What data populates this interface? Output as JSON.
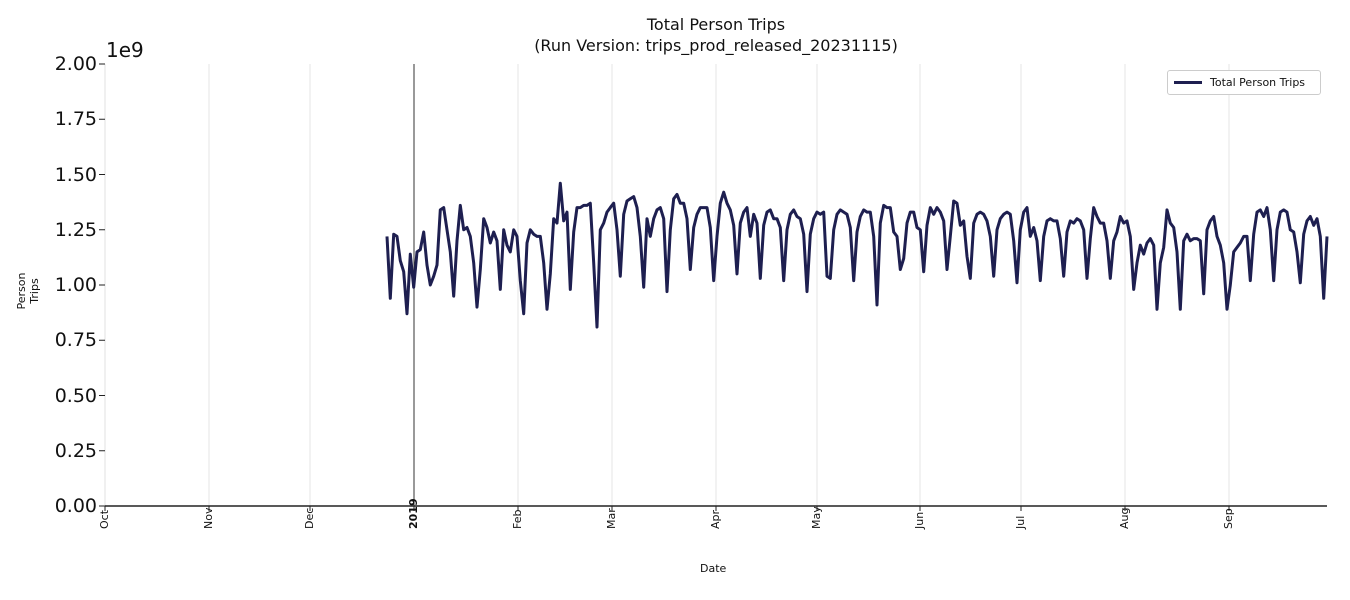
{
  "chart_data": {
    "type": "line",
    "title": "Total Person Trips",
    "subtitle": "(Run Version: trips_prod_released_20231115)",
    "xlabel": "Date",
    "ylabel": "Person Trips",
    "y_offset_label": "1e9",
    "ylim": [
      0,
      2000000000
    ],
    "xlim": [
      "2018-10-01",
      "2019-09-30"
    ],
    "grid": "vertical only at month ticks",
    "legend_position": "upper right",
    "y_ticks": [
      "0.00",
      "0.25",
      "0.50",
      "0.75",
      "1.00",
      "1.25",
      "1.50",
      "1.75",
      "2.00"
    ],
    "x_ticks": [
      {
        "label": "Oct",
        "bold": false
      },
      {
        "label": "Nov",
        "bold": false
      },
      {
        "label": "Dec",
        "bold": false
      },
      {
        "label": "2019",
        "bold": true
      },
      {
        "label": "Feb",
        "bold": false
      },
      {
        "label": "Mar",
        "bold": false
      },
      {
        "label": "Apr",
        "bold": false
      },
      {
        "label": "May",
        "bold": false
      },
      {
        "label": "Jun",
        "bold": false
      },
      {
        "label": "Jul",
        "bold": false
      },
      {
        "label": "Aug",
        "bold": false
      },
      {
        "label": "Sep",
        "bold": false
      }
    ],
    "vline": {
      "x": "2019-01-01",
      "color": "#333333"
    },
    "series": [
      {
        "name": "Total Person Trips",
        "color": "#1e1f50",
        "start_date": "2018-12-24",
        "end_date": "2019-09-30",
        "values_1e9": [
          1.22,
          0.94,
          1.23,
          1.22,
          1.11,
          1.06,
          0.87,
          1.14,
          0.99,
          1.15,
          1.16,
          1.24,
          1.09,
          1.0,
          1.04,
          1.09,
          1.34,
          1.35,
          1.25,
          1.15,
          0.95,
          1.2,
          1.36,
          1.25,
          1.26,
          1.22,
          1.1,
          0.9,
          1.07,
          1.3,
          1.26,
          1.19,
          1.24,
          1.2,
          0.98,
          1.25,
          1.18,
          1.15,
          1.25,
          1.22,
          1.02,
          0.87,
          1.19,
          1.25,
          1.23,
          1.22,
          1.22,
          1.1,
          0.89,
          1.05,
          1.3,
          1.28,
          1.46,
          1.29,
          1.33,
          0.98,
          1.24,
          1.35,
          1.35,
          1.36,
          1.36,
          1.37,
          1.1,
          0.81,
          1.25,
          1.28,
          1.33,
          1.35,
          1.37,
          1.25,
          1.04,
          1.32,
          1.38,
          1.39,
          1.4,
          1.35,
          1.22,
          0.99,
          1.3,
          1.22,
          1.3,
          1.34,
          1.35,
          1.3,
          0.97,
          1.25,
          1.39,
          1.41,
          1.37,
          1.37,
          1.3,
          1.07,
          1.26,
          1.32,
          1.35,
          1.35,
          1.35,
          1.26,
          1.02,
          1.22,
          1.37,
          1.42,
          1.37,
          1.34,
          1.27,
          1.05,
          1.28,
          1.33,
          1.35,
          1.22,
          1.32,
          1.28,
          1.03,
          1.27,
          1.33,
          1.34,
          1.3,
          1.3,
          1.26,
          1.02,
          1.25,
          1.32,
          1.34,
          1.31,
          1.3,
          1.23,
          0.97,
          1.23,
          1.3,
          1.33,
          1.32,
          1.33,
          1.04,
          1.03,
          1.25,
          1.32,
          1.34,
          1.33,
          1.32,
          1.26,
          1.02,
          1.24,
          1.31,
          1.34,
          1.33,
          1.33,
          1.22,
          0.91,
          1.28,
          1.36,
          1.35,
          1.35,
          1.24,
          1.22,
          1.07,
          1.12,
          1.28,
          1.33,
          1.33,
          1.26,
          1.25,
          1.06,
          1.27,
          1.35,
          1.32,
          1.35,
          1.33,
          1.29,
          1.07,
          1.22,
          1.38,
          1.37,
          1.27,
          1.29,
          1.13,
          1.03,
          1.28,
          1.32,
          1.33,
          1.32,
          1.29,
          1.22,
          1.04,
          1.25,
          1.3,
          1.32,
          1.33,
          1.32,
          1.2,
          1.01,
          1.25,
          1.33,
          1.35,
          1.22,
          1.26,
          1.2,
          1.02,
          1.22,
          1.29,
          1.3,
          1.29,
          1.29,
          1.21,
          1.04,
          1.24,
          1.29,
          1.28,
          1.3,
          1.29,
          1.25,
          1.03,
          1.21,
          1.35,
          1.31,
          1.28,
          1.28,
          1.2,
          1.03,
          1.2,
          1.24,
          1.31,
          1.28,
          1.29,
          1.22,
          0.98,
          1.1,
          1.18,
          1.14,
          1.19,
          1.21,
          1.18,
          0.89,
          1.1,
          1.17,
          1.34,
          1.28,
          1.26,
          1.15,
          0.89,
          1.2,
          1.23,
          1.2,
          1.21,
          1.21,
          1.2,
          0.96,
          1.25,
          1.29,
          1.31,
          1.22,
          1.18,
          1.1,
          0.89,
          1.0,
          1.15,
          1.17,
          1.19,
          1.22,
          1.22,
          1.02,
          1.23,
          1.33,
          1.34,
          1.31,
          1.35,
          1.25,
          1.02,
          1.25,
          1.33,
          1.34,
          1.33,
          1.25,
          1.24,
          1.15,
          1.01,
          1.23,
          1.29,
          1.31,
          1.27,
          1.3,
          1.22,
          0.94,
          1.22
        ]
      }
    ]
  },
  "legend": {
    "label": "Total Person Trips"
  }
}
